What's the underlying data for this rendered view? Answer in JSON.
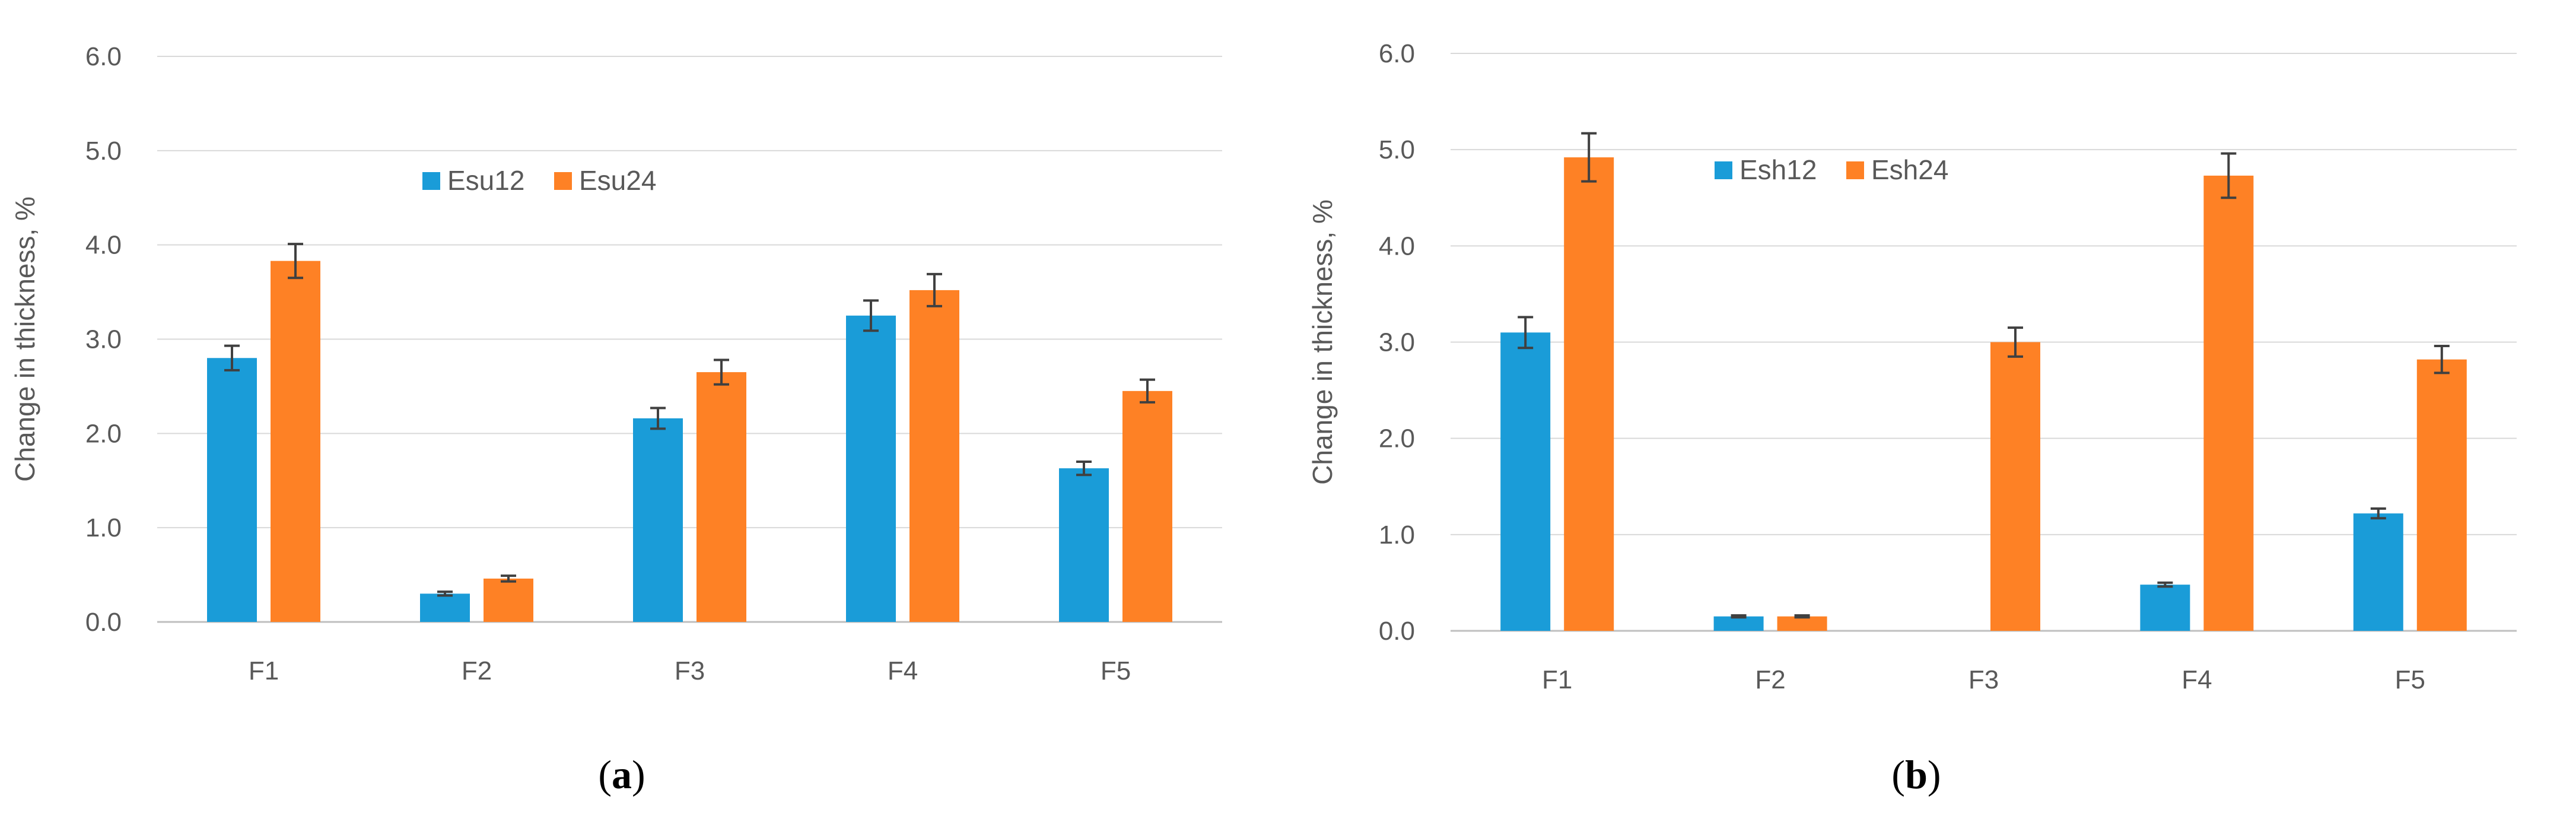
{
  "chart_data": [
    {
      "type": "bar",
      "panel": "a",
      "categories": [
        "F1",
        "F2",
        "F3",
        "F4",
        "F5"
      ],
      "series": [
        {
          "name": "Esu12",
          "color": "#1a9cd8",
          "values": [
            2.8,
            0.3,
            2.16,
            3.25,
            1.63
          ],
          "errors": [
            0.13,
            0.02,
            0.11,
            0.16,
            0.07
          ]
        },
        {
          "name": "Esu24",
          "color": "#fe8125",
          "values": [
            3.83,
            0.46,
            2.65,
            3.52,
            2.45
          ],
          "errors": [
            0.18,
            0.03,
            0.13,
            0.17,
            0.12
          ]
        }
      ],
      "ylabel": "Change in thickness, %",
      "xlabel": "",
      "ylim": [
        0,
        6
      ],
      "yticks": [
        "0.0",
        "1.0",
        "2.0",
        "3.0",
        "4.0",
        "5.0",
        "6.0"
      ],
      "grid": true,
      "legend_position": "top-center",
      "caption_open": "(",
      "caption_letter": "a",
      "caption_close": ")"
    },
    {
      "type": "bar",
      "panel": "b",
      "categories": [
        "F1",
        "F2",
        "F3",
        "F4",
        "F5"
      ],
      "series": [
        {
          "name": "Esh12",
          "color": "#1a9cd8",
          "values": [
            3.1,
            0.15,
            0.0,
            0.48,
            1.22
          ],
          "errors": [
            0.16,
            0.01,
            0.0,
            0.02,
            0.05
          ]
        },
        {
          "name": "Esh24",
          "color": "#fe8125",
          "values": [
            4.92,
            0.15,
            3.0,
            4.73,
            2.82
          ],
          "errors": [
            0.25,
            0.01,
            0.15,
            0.23,
            0.14
          ]
        }
      ],
      "ylabel": "Change in thickness, %",
      "xlabel": "",
      "ylim": [
        0,
        6
      ],
      "yticks": [
        "0.0",
        "1.0",
        "2.0",
        "3.0",
        "4.0",
        "5.0",
        "6.0"
      ],
      "grid": true,
      "legend_position": "top-left",
      "caption_open": "(",
      "caption_letter": "b",
      "caption_close": ")"
    }
  ]
}
